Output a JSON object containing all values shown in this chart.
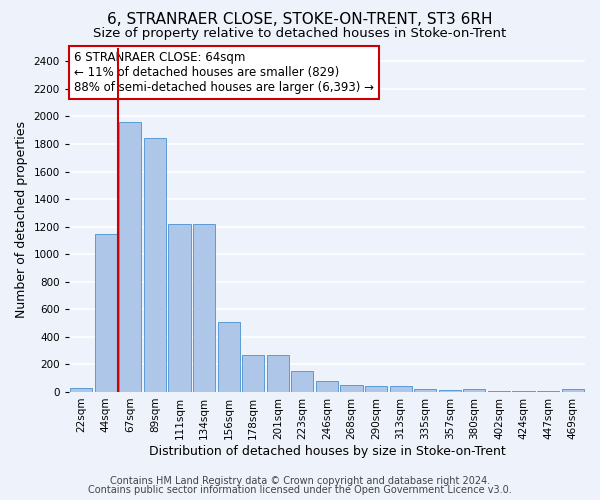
{
  "title": "6, STRANRAER CLOSE, STOKE-ON-TRENT, ST3 6RH",
  "subtitle": "Size of property relative to detached houses in Stoke-on-Trent",
  "xlabel": "Distribution of detached houses by size in Stoke-on-Trent",
  "ylabel": "Number of detached properties",
  "categories": [
    "22sqm",
    "44sqm",
    "67sqm",
    "89sqm",
    "111sqm",
    "134sqm",
    "156sqm",
    "178sqm",
    "201sqm",
    "223sqm",
    "246sqm",
    "268sqm",
    "290sqm",
    "313sqm",
    "335sqm",
    "357sqm",
    "380sqm",
    "402sqm",
    "424sqm",
    "447sqm",
    "469sqm"
  ],
  "values": [
    30,
    1150,
    1960,
    1840,
    1220,
    1220,
    510,
    265,
    265,
    155,
    80,
    50,
    40,
    40,
    20,
    15,
    20,
    5,
    5,
    5,
    20
  ],
  "bar_color": "#aec6e8",
  "bar_edge_color": "#5b9bd5",
  "ylim": [
    0,
    2500
  ],
  "yticks": [
    0,
    200,
    400,
    600,
    800,
    1000,
    1200,
    1400,
    1600,
    1800,
    2000,
    2200,
    2400
  ],
  "annotation_title": "6 STRANRAER CLOSE: 64sqm",
  "annotation_line1": "← 11% of detached houses are smaller (829)",
  "annotation_line2": "88% of semi-detached houses are larger (6,393) →",
  "vline_color": "#cc0000",
  "annotation_box_edge": "#cc0000",
  "footer1": "Contains HM Land Registry data © Crown copyright and database right 2024.",
  "footer2": "Contains public sector information licensed under the Open Government Licence v3.0.",
  "background_color": "#eef2fb",
  "plot_bg_color": "#eef2fb",
  "grid_color": "#ffffff",
  "title_fontsize": 11,
  "subtitle_fontsize": 9.5,
  "xlabel_fontsize": 9,
  "ylabel_fontsize": 9,
  "tick_fontsize": 7.5,
  "annotation_fontsize": 8.5,
  "footer_fontsize": 7
}
